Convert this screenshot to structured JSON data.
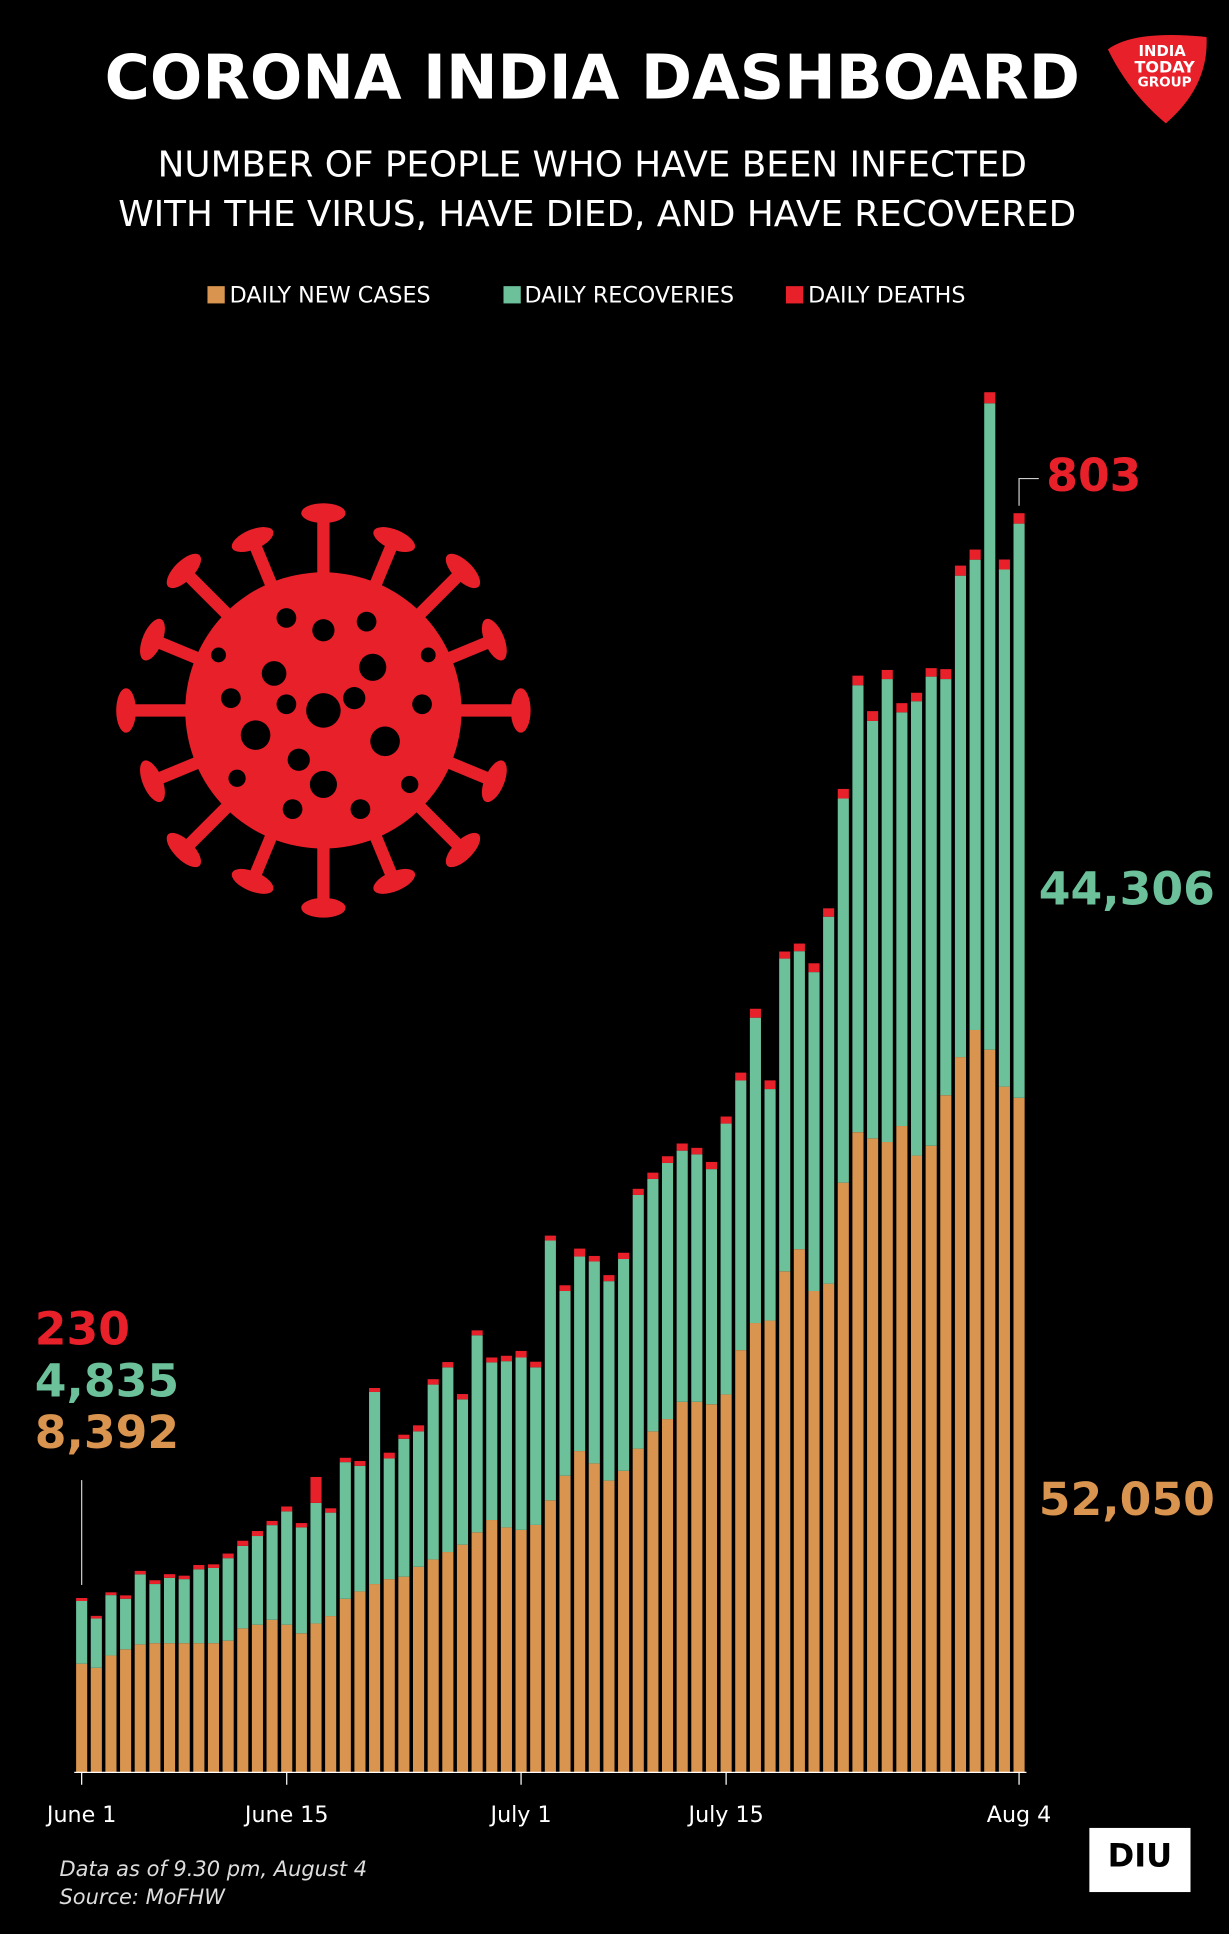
{
  "chart_data": {
    "type": "bar",
    "stacked": true,
    "title": "CORONA INDIA DASHBOARD",
    "subtitle": [
      "NUMBER OF PEOPLE WHO HAVE BEEN INFECTED",
      "WITH THE VIRUS, HAVE DIED, AND HAVE RECOVERED"
    ],
    "categories": [
      "June 1",
      null,
      null,
      null,
      null,
      null,
      null,
      null,
      null,
      null,
      null,
      null,
      null,
      null,
      "June 15",
      null,
      null,
      null,
      null,
      null,
      null,
      null,
      null,
      null,
      null,
      null,
      null,
      null,
      null,
      null,
      "July 1",
      null,
      null,
      null,
      null,
      null,
      null,
      null,
      null,
      null,
      null,
      null,
      null,
      null,
      "July 15",
      null,
      null,
      null,
      null,
      null,
      null,
      null,
      null,
      null,
      null,
      null,
      null,
      null,
      null,
      null,
      null,
      null,
      null,
      null,
      "Aug 4"
    ],
    "series": [
      {
        "name": "DAILY NEW CASES",
        "color": "#d9944f",
        "values": [
          8392,
          8075,
          9025,
          9500,
          9880,
          9975,
          9975,
          9975,
          9975,
          9975,
          10165,
          11115,
          11400,
          11780,
          11400,
          10735,
          11495,
          12065,
          13395,
          13965,
          14535,
          14915,
          15105,
          15865,
          16435,
          17005,
          17575,
          18525,
          19475,
          18905,
          18715,
          19095,
          20995,
          22895,
          24795,
          23845,
          22515,
          23275,
          24985,
          26315,
          27265,
          28595,
          28595,
          28405,
          29165,
          32585,
          34675,
          34865,
          38665,
          40375,
          37145,
          37715,
          45505,
          49400,
          48925,
          48640,
          49875,
          47595,
          48355,
          52250,
          55195,
          57285,
          55765,
          52915,
          52050
        ],
        "value_labels": [
          "8,392",
          null,
          null,
          null,
          null,
          null,
          null,
          null,
          null,
          null,
          null,
          null,
          null,
          null,
          null,
          null,
          null,
          null,
          null,
          null,
          null,
          null,
          null,
          null,
          null,
          null,
          null,
          null,
          null,
          null,
          null,
          null,
          null,
          null,
          null,
          null,
          null,
          null,
          null,
          null,
          null,
          null,
          null,
          null,
          null,
          null,
          null,
          null,
          null,
          null,
          null,
          null,
          null,
          null,
          null,
          null,
          null,
          null,
          null,
          null,
          null,
          null,
          null,
          null,
          "52,050"
        ]
      },
      {
        "name": "DAILY RECOVERIES",
        "color": "#6cc19b",
        "values": [
          4835,
          3800,
          4655,
          3900,
          5400,
          4560,
          5035,
          4940,
          5700,
          5800,
          6365,
          6365,
          6840,
          7300,
          8740,
          8170,
          9300,
          7980,
          10545,
          9690,
          14820,
          9310,
          10640,
          10450,
          13490,
          14250,
          11210,
          15200,
          12160,
          12825,
          13300,
          12160,
          20045,
          14250,
          15010,
          15580,
          15390,
          16340,
          19570,
          19475,
          19760,
          19380,
          19095,
          18145,
          20900,
          20805,
          23560,
          17860,
          24130,
          22990,
          24605,
          28310,
          29640,
          34485,
          32205,
          35720,
          31920,
          35055,
          36195,
          32110,
          37145,
          36290,
          49875,
          39900,
          44306
        ],
        "value_labels": [
          "4,835",
          null,
          null,
          null,
          null,
          null,
          null,
          null,
          null,
          null,
          null,
          null,
          null,
          null,
          null,
          null,
          null,
          null,
          null,
          null,
          null,
          null,
          null,
          null,
          null,
          null,
          null,
          null,
          null,
          null,
          null,
          null,
          null,
          null,
          null,
          null,
          null,
          null,
          null,
          null,
          null,
          null,
          null,
          null,
          null,
          null,
          null,
          null,
          null,
          null,
          null,
          null,
          null,
          null,
          null,
          null,
          null,
          null,
          null,
          null,
          null,
          null,
          null,
          null,
          "44,306"
        ]
      },
      {
        "name": "DAILY DEATHS",
        "color": "#e8202a",
        "values": [
          230,
          204,
          217,
          260,
          273,
          294,
          287,
          266,
          331,
          279,
          357,
          396,
          386,
          325,
          380,
          336,
          2003,
          334,
          336,
          375,
          306,
          445,
          312,
          465,
          418,
          407,
          410,
          384,
          380,
          418,
          507,
          434,
          379,
          442,
          613,
          425,
          467,
          482,
          475,
          487,
          519,
          551,
          500,
          553,
          543,
          606,
          687,
          671,
          543,
          587,
          681,
          648,
          740,
          740,
          757,
          705,
          708,
          654,
          654,
          768,
          775,
          779,
          853,
          771,
          803
        ],
        "value_labels": [
          "230",
          null,
          null,
          null,
          null,
          null,
          null,
          null,
          null,
          null,
          null,
          null,
          null,
          null,
          null,
          null,
          null,
          null,
          null,
          null,
          null,
          null,
          null,
          null,
          null,
          null,
          null,
          null,
          null,
          null,
          null,
          null,
          null,
          null,
          null,
          null,
          null,
          null,
          null,
          null,
          null,
          null,
          null,
          null,
          null,
          null,
          null,
          null,
          null,
          null,
          null,
          null,
          null,
          null,
          null,
          null,
          null,
          null,
          null,
          null,
          null,
          null,
          null,
          null,
          "803"
        ]
      }
    ],
    "notes": [
      "Data as of 9.30 pm, August 4",
      "Source: MoFHW"
    ]
  },
  "logos": {
    "publisher": [
      "INDIA",
      "TODAY",
      "GROUP"
    ],
    "unit": "DIU"
  }
}
